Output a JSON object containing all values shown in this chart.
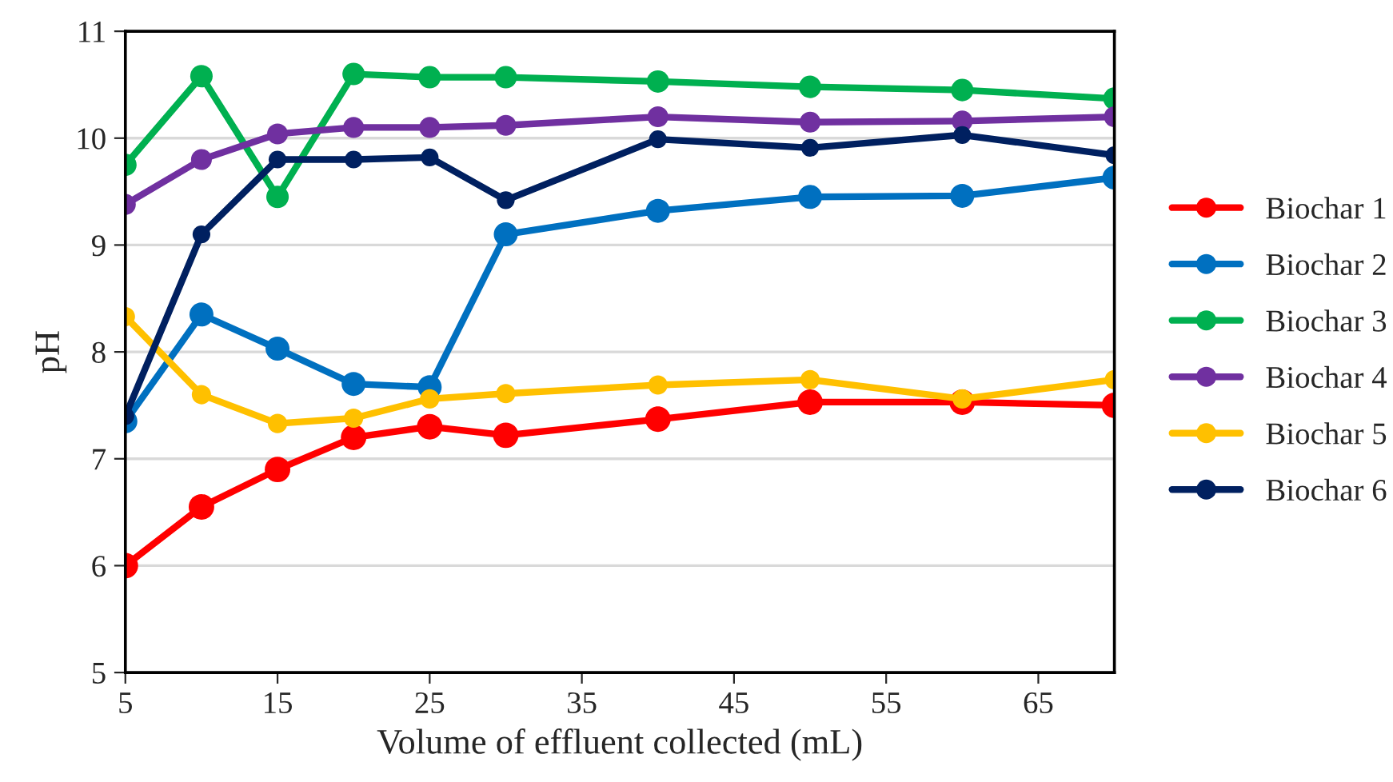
{
  "chart_data": {
    "type": "line",
    "xlabel": "Volume of effluent collected (mL)",
    "ylabel": "pH",
    "x": [
      5,
      10,
      15,
      20,
      25,
      30,
      40,
      50,
      60,
      70
    ],
    "series": [
      {
        "name": "Biochar 1",
        "color": "#ff0000",
        "values": [
          6.0,
          6.55,
          6.9,
          7.2,
          7.3,
          7.22,
          7.37,
          7.53,
          7.53,
          7.5
        ]
      },
      {
        "name": "Biochar 2",
        "color": "#0070c0",
        "values": [
          7.35,
          8.35,
          8.03,
          7.7,
          7.67,
          9.1,
          9.32,
          9.45,
          9.46,
          9.63
        ]
      },
      {
        "name": "Biochar 3",
        "color": "#00b050",
        "values": [
          9.75,
          10.58,
          9.45,
          10.6,
          10.57,
          10.57,
          10.53,
          10.48,
          10.45,
          10.37
        ]
      },
      {
        "name": "Biochar 4",
        "color": "#7030a0",
        "values": [
          9.38,
          9.8,
          10.04,
          10.1,
          10.1,
          10.12,
          10.2,
          10.15,
          10.16,
          10.2
        ]
      },
      {
        "name": "Biochar 5",
        "color": "#ffc000",
        "values": [
          8.33,
          7.6,
          7.33,
          7.38,
          7.56,
          7.61,
          7.69,
          7.74,
          7.56,
          7.74
        ]
      },
      {
        "name": "Biochar 6",
        "color": "#002060",
        "values": [
          7.4,
          9.1,
          9.8,
          9.8,
          9.82,
          9.42,
          9.99,
          9.91,
          10.03,
          9.84
        ]
      }
    ],
    "xlim": [
      5,
      70
    ],
    "xticks": [
      5,
      15,
      25,
      35,
      45,
      55,
      65
    ],
    "ylim": [
      5,
      11
    ],
    "yticks": [
      5,
      6,
      7,
      8,
      9,
      10,
      11
    ],
    "grid": "y",
    "legend": "right",
    "marker": "circle",
    "line_style": "solid"
  }
}
